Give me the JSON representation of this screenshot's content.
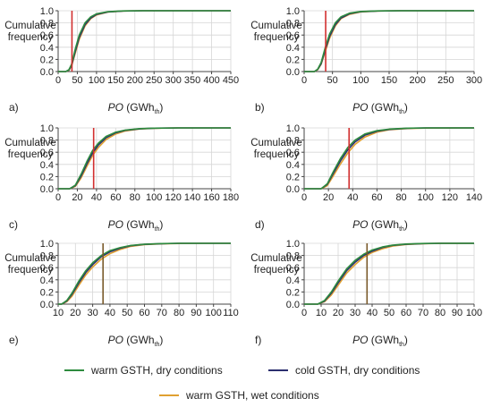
{
  "chart_data": [
    {
      "type": "line",
      "panel_label": "a)",
      "ylabel": "Cumulative frequency",
      "xlabel": "PO",
      "xlabel_unit": "(GWh",
      "xlabel_sub": "th",
      "xlim": [
        0,
        450
      ],
      "ylim": [
        0,
        1
      ],
      "xticks": [
        "0",
        "50",
        "100",
        "150",
        "200",
        "250",
        "300",
        "350",
        "400",
        "450"
      ],
      "yticks": [
        "0.0",
        "0.2",
        "0.4",
        "0.6",
        "0.8",
        "1.0"
      ],
      "grid": true,
      "series": [
        {
          "key": "warm_dry",
          "x": [
            20,
            28,
            35,
            45,
            55,
            70,
            85,
            100,
            130,
            170,
            220,
            450
          ],
          "y": [
            0,
            0.03,
            0.12,
            0.38,
            0.6,
            0.8,
            0.9,
            0.95,
            0.985,
            0.997,
            1.0,
            1.0
          ]
        },
        {
          "key": "cold_dry",
          "x": [
            20,
            28,
            35,
            45,
            55,
            70,
            85,
            100,
            130,
            170,
            220,
            450
          ],
          "y": [
            0,
            0.025,
            0.1,
            0.34,
            0.56,
            0.77,
            0.88,
            0.94,
            0.98,
            0.995,
            1.0,
            1.0
          ]
        },
        {
          "key": "warm_wet",
          "x": [
            20,
            28,
            35,
            45,
            55,
            70,
            85,
            100,
            130,
            170,
            220,
            450
          ],
          "y": [
            0,
            0.02,
            0.09,
            0.31,
            0.53,
            0.75,
            0.87,
            0.93,
            0.978,
            0.995,
            1.0,
            1.0
          ]
        }
      ],
      "reference_line": {
        "x": 36,
        "color": "#d22f2f"
      }
    },
    {
      "type": "line",
      "panel_label": "b)",
      "ylabel": "Cumulative frequency",
      "xlabel": "PO",
      "xlabel_unit": "(GWh",
      "xlabel_sub": "th",
      "xlim": [
        0,
        300
      ],
      "ylim": [
        0,
        1
      ],
      "xticks": [
        "0",
        "50",
        "100",
        "150",
        "200",
        "250",
        "300"
      ],
      "yticks": [
        "0.0",
        "0.2",
        "0.4",
        "0.6",
        "0.8",
        "1.0"
      ],
      "grid": true,
      "series": [
        {
          "key": "warm_dry",
          "x": [
            18,
            24,
            30,
            38,
            45,
            55,
            65,
            80,
            100,
            130,
            170,
            300
          ],
          "y": [
            0,
            0.04,
            0.15,
            0.42,
            0.62,
            0.8,
            0.9,
            0.96,
            0.988,
            0.998,
            1.0,
            1.0
          ]
        },
        {
          "key": "cold_dry",
          "x": [
            18,
            24,
            30,
            38,
            45,
            55,
            65,
            80,
            100,
            130,
            170,
            300
          ],
          "y": [
            0,
            0.035,
            0.13,
            0.38,
            0.58,
            0.77,
            0.88,
            0.95,
            0.984,
            0.996,
            1.0,
            1.0
          ]
        },
        {
          "key": "warm_wet",
          "x": [
            18,
            24,
            30,
            38,
            45,
            55,
            65,
            80,
            100,
            130,
            170,
            300
          ],
          "y": [
            0,
            0.03,
            0.12,
            0.35,
            0.55,
            0.75,
            0.87,
            0.94,
            0.98,
            0.995,
            1.0,
            1.0
          ]
        }
      ],
      "reference_line": {
        "x": 38,
        "color": "#d22f2f"
      }
    },
    {
      "type": "line",
      "panel_label": "c)",
      "ylabel": "Cumulative frequency",
      "xlabel": "PO",
      "xlabel_unit": "(GWh",
      "xlabel_sub": "th",
      "xlim": [
        0,
        180
      ],
      "ylim": [
        0,
        1
      ],
      "xticks": [
        "0",
        "20",
        "40",
        "60",
        "80",
        "100",
        "120",
        "140",
        "160",
        "180"
      ],
      "yticks": [
        "0.0",
        "0.2",
        "0.4",
        "0.6",
        "0.8",
        "1.0"
      ],
      "grid": true,
      "series": [
        {
          "key": "warm_dry",
          "x": [
            12,
            18,
            24,
            30,
            36,
            42,
            50,
            60,
            70,
            85,
            100,
            125,
            180
          ],
          "y": [
            0,
            0.06,
            0.24,
            0.45,
            0.63,
            0.75,
            0.86,
            0.93,
            0.965,
            0.988,
            0.996,
            1.0,
            1.0
          ]
        },
        {
          "key": "cold_dry",
          "x": [
            12,
            18,
            24,
            30,
            36,
            42,
            50,
            60,
            70,
            85,
            100,
            125,
            180
          ],
          "y": [
            0,
            0.05,
            0.21,
            0.41,
            0.59,
            0.72,
            0.84,
            0.92,
            0.96,
            0.985,
            0.995,
            1.0,
            1.0
          ]
        },
        {
          "key": "warm_wet",
          "x": [
            12,
            18,
            24,
            30,
            36,
            42,
            50,
            60,
            70,
            85,
            100,
            125,
            180
          ],
          "y": [
            0,
            0.04,
            0.18,
            0.37,
            0.55,
            0.68,
            0.81,
            0.9,
            0.95,
            0.982,
            0.994,
            1.0,
            1.0
          ]
        }
      ],
      "reference_line": {
        "x": 37,
        "color": "#d22f2f"
      }
    },
    {
      "type": "line",
      "panel_label": "d)",
      "ylabel": "Cumulative frequency",
      "xlabel": "PO",
      "xlabel_unit": "(GWh",
      "xlabel_sub": "th",
      "xlim": [
        0,
        140
      ],
      "ylim": [
        0,
        1
      ],
      "xticks": [
        "0",
        "20",
        "40",
        "60",
        "80",
        "100",
        "120",
        "140"
      ],
      "yticks": [
        "0.0",
        "0.2",
        "0.4",
        "0.6",
        "0.8",
        "1.0"
      ],
      "grid": true,
      "series": [
        {
          "key": "warm_dry",
          "x": [
            14,
            19,
            24,
            30,
            36,
            42,
            50,
            60,
            70,
            85,
            100,
            140
          ],
          "y": [
            0,
            0.08,
            0.28,
            0.5,
            0.68,
            0.8,
            0.9,
            0.955,
            0.98,
            0.995,
            1.0,
            1.0
          ]
        },
        {
          "key": "cold_dry",
          "x": [
            14,
            19,
            24,
            30,
            36,
            42,
            50,
            60,
            70,
            85,
            100,
            140
          ],
          "y": [
            0,
            0.07,
            0.25,
            0.46,
            0.64,
            0.77,
            0.88,
            0.945,
            0.975,
            0.993,
            1.0,
            1.0
          ]
        },
        {
          "key": "warm_wet",
          "x": [
            14,
            19,
            24,
            30,
            36,
            42,
            50,
            60,
            70,
            85,
            100,
            140
          ],
          "y": [
            0,
            0.05,
            0.21,
            0.41,
            0.59,
            0.73,
            0.85,
            0.93,
            0.97,
            0.99,
            0.998,
            1.0
          ]
        }
      ],
      "reference_line": {
        "x": 37,
        "color": "#d22f2f"
      }
    },
    {
      "type": "line",
      "panel_label": "e)",
      "ylabel": "Cumulative frequency",
      "xlabel": "PO",
      "xlabel_unit": "(GWh",
      "xlabel_sub": "th",
      "xlim": [
        10,
        110
      ],
      "ylim": [
        0,
        1
      ],
      "xticks": [
        "10",
        "20",
        "30",
        "40",
        "50",
        "60",
        "70",
        "80",
        "90",
        "100",
        "110"
      ],
      "yticks": [
        "0.0",
        "0.2",
        "0.4",
        "0.6",
        "0.8",
        "1.0"
      ],
      "grid": true,
      "series": [
        {
          "key": "warm_dry",
          "x": [
            12,
            15,
            18,
            22,
            26,
            30,
            35,
            40,
            46,
            52,
            60,
            70,
            80,
            95,
            110
          ],
          "y": [
            0,
            0.06,
            0.18,
            0.38,
            0.55,
            0.68,
            0.8,
            0.88,
            0.93,
            0.965,
            0.985,
            0.995,
            1.0,
            1.0,
            1.0
          ]
        },
        {
          "key": "cold_dry",
          "x": [
            12,
            15,
            18,
            22,
            26,
            30,
            35,
            40,
            46,
            52,
            60,
            70,
            80,
            95,
            110
          ],
          "y": [
            0,
            0.05,
            0.16,
            0.35,
            0.52,
            0.65,
            0.78,
            0.86,
            0.92,
            0.96,
            0.983,
            0.994,
            1.0,
            1.0,
            1.0
          ]
        },
        {
          "key": "warm_wet",
          "x": [
            12,
            15,
            18,
            22,
            26,
            30,
            35,
            40,
            46,
            52,
            60,
            70,
            80,
            95,
            110
          ],
          "y": [
            0,
            0.04,
            0.13,
            0.31,
            0.48,
            0.61,
            0.74,
            0.83,
            0.9,
            0.95,
            0.978,
            0.992,
            0.998,
            1.0,
            1.0
          ]
        }
      ],
      "reference_line": {
        "x": 36,
        "color": "#7a5a2a"
      }
    },
    {
      "type": "line",
      "panel_label": "f)",
      "ylabel": "Cumulative frequency",
      "xlabel": "PO",
      "xlabel_unit": "(GWh",
      "xlabel_sub": "th",
      "xlim": [
        0,
        100
      ],
      "ylim": [
        0,
        1
      ],
      "xticks": [
        "0",
        "10",
        "20",
        "30",
        "40",
        "50",
        "60",
        "70",
        "80",
        "90",
        "100"
      ],
      "yticks": [
        "0.0",
        "0.2",
        "0.4",
        "0.6",
        "0.8",
        "1.0"
      ],
      "grid": true,
      "series": [
        {
          "key": "warm_dry",
          "x": [
            8,
            12,
            16,
            20,
            25,
            30,
            35,
            40,
            46,
            52,
            60,
            70,
            80,
            100
          ],
          "y": [
            0,
            0.06,
            0.2,
            0.38,
            0.58,
            0.72,
            0.82,
            0.89,
            0.94,
            0.97,
            0.988,
            0.997,
            1.0,
            1.0
          ]
        },
        {
          "key": "cold_dry",
          "x": [
            8,
            12,
            16,
            20,
            25,
            30,
            35,
            40,
            46,
            52,
            60,
            70,
            80,
            100
          ],
          "y": [
            0,
            0.05,
            0.18,
            0.35,
            0.55,
            0.69,
            0.8,
            0.87,
            0.93,
            0.965,
            0.985,
            0.996,
            1.0,
            1.0
          ]
        },
        {
          "key": "warm_wet",
          "x": [
            8,
            12,
            16,
            20,
            25,
            30,
            35,
            40,
            46,
            52,
            60,
            70,
            80,
            100
          ],
          "y": [
            0,
            0.04,
            0.15,
            0.31,
            0.51,
            0.65,
            0.77,
            0.85,
            0.91,
            0.955,
            0.98,
            0.994,
            0.999,
            1.0
          ]
        }
      ],
      "reference_line": {
        "x": 37,
        "color": "#7a5a2a"
      }
    }
  ],
  "legend": [
    {
      "key": "warm_dry",
      "label": "warm GSTH, dry conditions",
      "color": "#2e8b3e"
    },
    {
      "key": "cold_dry",
      "label": "cold GSTH, dry conditions",
      "color": "#2b2f6e"
    },
    {
      "key": "warm_wet",
      "label": "warm GSTH, wet conditions",
      "color": "#e0a030"
    }
  ]
}
